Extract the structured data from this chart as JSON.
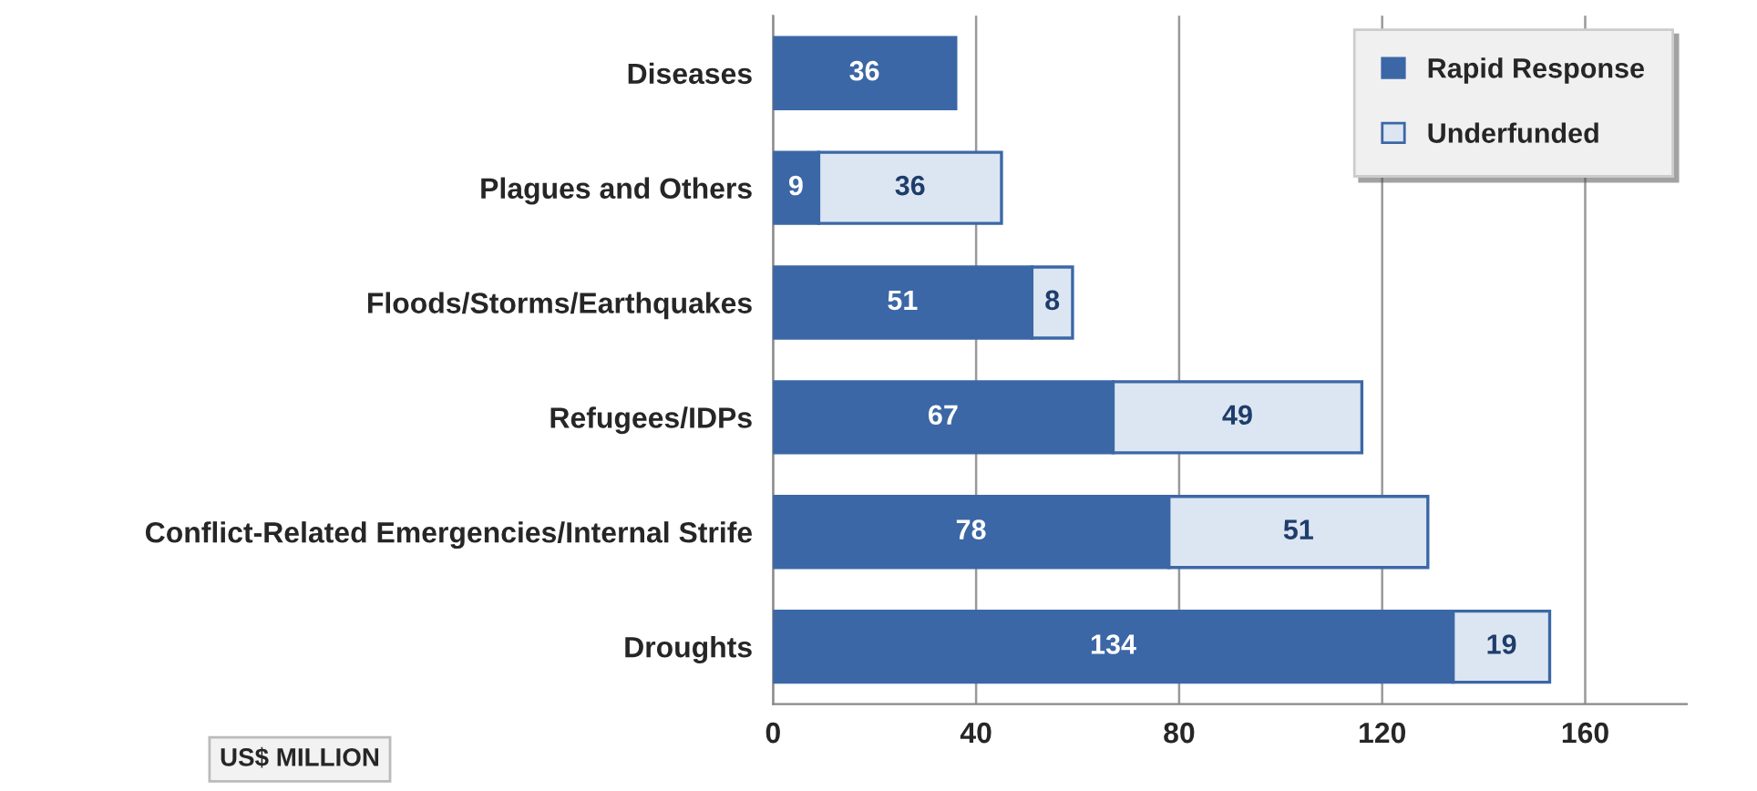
{
  "chart_data": {
    "type": "bar",
    "orientation": "horizontal",
    "stacked": true,
    "categories": [
      "Diseases",
      "Plagues and Others",
      "Floods/Storms/Earthquakes",
      "Refugees/IDPs",
      "Conflict-Related Emergencies/Internal Strife",
      "Droughts"
    ],
    "series": [
      {
        "name": "Rapid Response",
        "color": "#3b67a6",
        "values": [
          36,
          9,
          51,
          67,
          78,
          134
        ]
      },
      {
        "name": "Underfunded",
        "color": "#dce6f2",
        "values": [
          null,
          36,
          8,
          49,
          51,
          19
        ]
      }
    ],
    "xlim": [
      0,
      180
    ],
    "xticks": [
      0,
      40,
      80,
      120,
      160
    ],
    "grid": "x",
    "legend": "top right",
    "data_labels": true,
    "xlabel": "US$ MILLION"
  }
}
